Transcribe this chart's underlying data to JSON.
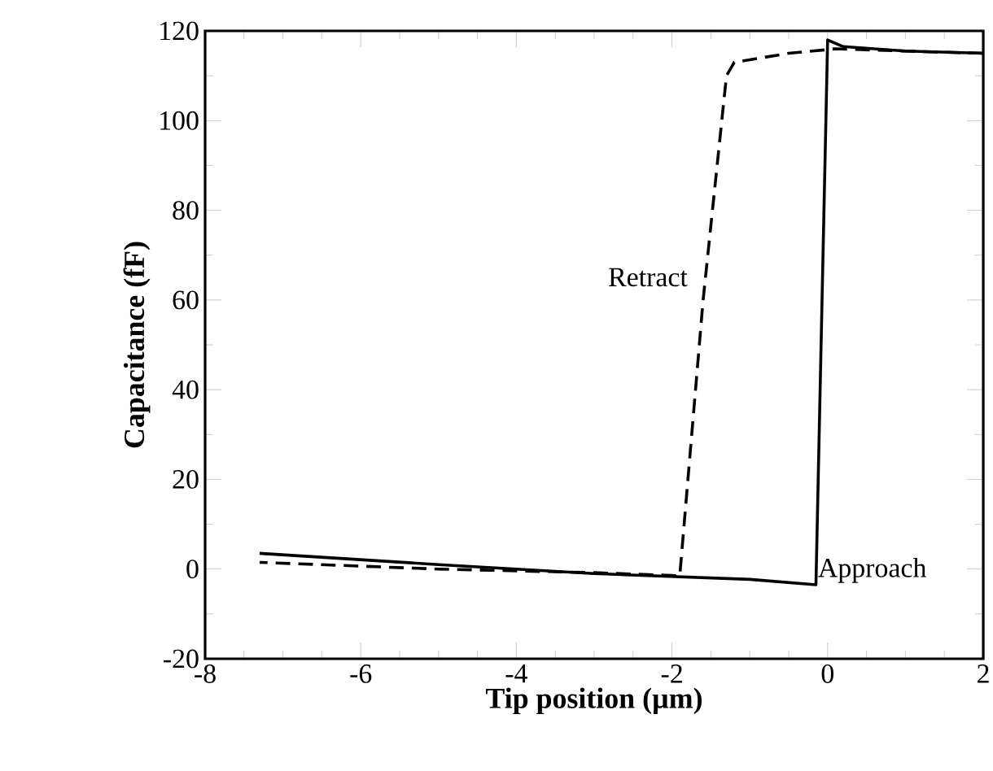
{
  "chart_data": {
    "type": "line",
    "xlabel": "Tip position (µm)",
    "ylabel": "Capacitance (fF)",
    "xlim": [
      -8,
      2
    ],
    "ylim": [
      -20,
      120
    ],
    "xticks": [
      -8,
      -6,
      -4,
      -2,
      0,
      2
    ],
    "yticks": [
      -20,
      0,
      20,
      40,
      60,
      80,
      100,
      120
    ],
    "series": [
      {
        "name": "Approach",
        "color": "#000000",
        "line_style": "solid",
        "x": [
          -7.3,
          -5,
          -3,
          -1,
          -0.15,
          0.0,
          0.2,
          1,
          2
        ],
        "values": [
          3.5,
          1.0,
          -1.0,
          -2.3,
          -3.5,
          118,
          116.5,
          115.5,
          115
        ]
      },
      {
        "name": "Retract",
        "color": "#000000",
        "line_style": "dashed",
        "x": [
          2,
          1,
          0.1,
          -0.5,
          -1.2,
          -1.3,
          -1.6,
          -1.9,
          -3,
          -5,
          -7.3
        ],
        "values": [
          115,
          115.5,
          116,
          115,
          113,
          110,
          60,
          -1.5,
          -0.8,
          0,
          1.5
        ]
      }
    ]
  }
}
